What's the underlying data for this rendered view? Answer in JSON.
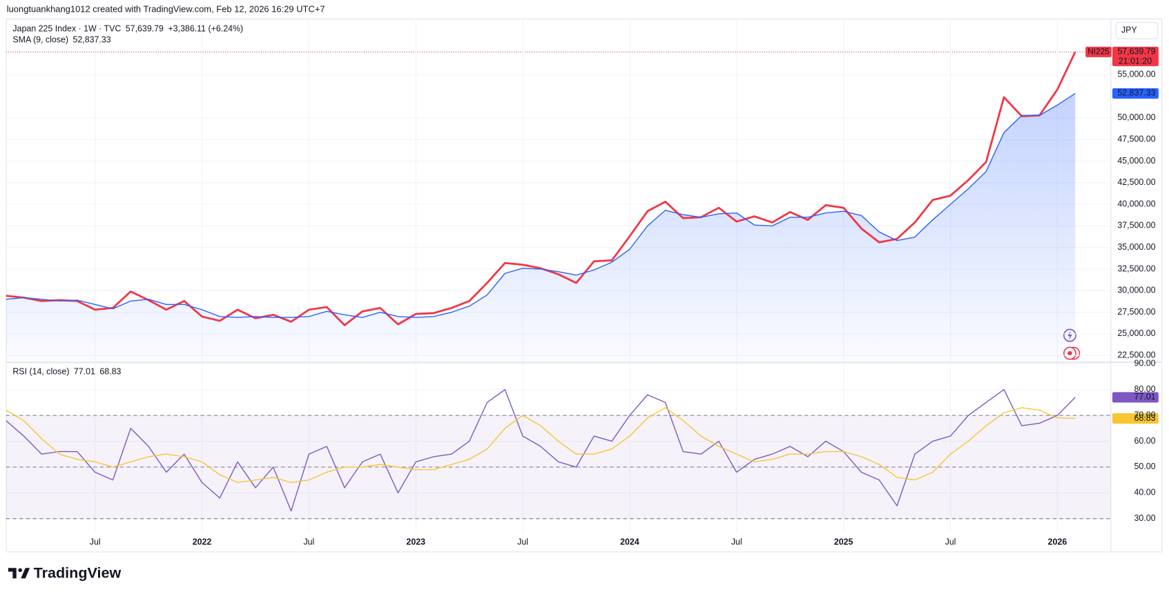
{
  "header": "luongtuankhang1012 created with TradingView.com, Feb 12, 2026 16:29 UTC+7",
  "currency": "JPY",
  "footer": "TradingView",
  "chart_data": [
    {
      "type": "line",
      "symbol": "NI225",
      "countdown": "21:01:20",
      "change": "+3,386.11 (+6.24%)",
      "x": [
        "2021-02",
        "2021-03",
        "2021-04",
        "2021-05",
        "2021-06",
        "2021-07",
        "2021-08",
        "2021-09",
        "2021-10",
        "2021-11",
        "2021-12",
        "2022-01",
        "2022-02",
        "2022-03",
        "2022-04",
        "2022-05",
        "2022-06",
        "2022-07",
        "2022-08",
        "2022-09",
        "2022-10",
        "2022-11",
        "2022-12",
        "2023-01",
        "2023-02",
        "2023-03",
        "2023-04",
        "2023-05",
        "2023-06",
        "2023-07",
        "2023-08",
        "2023-09",
        "2023-10",
        "2023-11",
        "2023-12",
        "2024-01",
        "2024-02",
        "2024-03",
        "2024-04",
        "2024-05",
        "2024-06",
        "2024-07",
        "2024-08",
        "2024-09",
        "2024-10",
        "2024-11",
        "2024-12",
        "2025-01",
        "2025-02",
        "2025-03",
        "2025-04",
        "2025-05",
        "2025-06",
        "2025-07",
        "2025-08",
        "2025-09",
        "2025-10",
        "2025-11",
        "2025-12",
        "2026-01",
        "2026-02"
      ],
      "xlim": [
        "2021-02",
        "2026-04"
      ],
      "series": [
        {
          "name": "Japan 225 Index · 1W · TVC",
          "color": "#f23645",
          "last_value_label": "57,639.79",
          "values": [
            29400,
            29200,
            28800,
            28900,
            28800,
            27800,
            28000,
            29900,
            28900,
            27800,
            28800,
            27000,
            26500,
            27800,
            26800,
            27200,
            26400,
            27800,
            28100,
            26000,
            27600,
            28000,
            26100,
            27300,
            27400,
            28000,
            28800,
            30900,
            33200,
            33000,
            32600,
            31900,
            30900,
            33400,
            33500,
            36300,
            39200,
            40300,
            38400,
            38500,
            39600,
            38000,
            38600,
            37900,
            39100,
            38200,
            39900,
            39600,
            37200,
            35600,
            36000,
            37900,
            40500,
            41000,
            42800,
            44900,
            52400,
            50200,
            50300,
            53300,
            57639.79
          ]
        },
        {
          "name": "SMA (9, close)",
          "color": "#2962ff",
          "fill": true,
          "last_value_label": "52,837.33",
          "values": [
            29000,
            29200,
            29000,
            28800,
            28900,
            28400,
            27900,
            28800,
            29000,
            28400,
            28400,
            27800,
            27000,
            26900,
            27000,
            26900,
            26900,
            27000,
            27600,
            27200,
            26900,
            27500,
            27000,
            26900,
            27000,
            27500,
            28200,
            29500,
            32000,
            32600,
            32500,
            32200,
            31800,
            32400,
            33300,
            34800,
            37500,
            39300,
            38800,
            38500,
            38900,
            39000,
            37600,
            37500,
            38500,
            38500,
            39000,
            39200,
            38700,
            36800,
            35800,
            36200,
            38200,
            40000,
            41800,
            43800,
            48300,
            50300,
            50300,
            51500,
            52837.33
          ]
        }
      ],
      "ylim": [
        21800,
        61500
      ],
      "yticks": [
        {
          "value": 22500,
          "label": "22,500.00"
        },
        {
          "value": 25000,
          "label": "25,000.00"
        },
        {
          "value": 27500,
          "label": "27,500.00"
        },
        {
          "value": 30000,
          "label": "30,000.00"
        },
        {
          "value": 32500,
          "label": "32,500.00"
        },
        {
          "value": 35000,
          "label": "35,000.00"
        },
        {
          "value": 37500,
          "label": "37,500.00"
        },
        {
          "value": 40000,
          "label": "40,000.00"
        },
        {
          "value": 42500,
          "label": "42,500.00"
        },
        {
          "value": 45000,
          "label": "45,000.00"
        },
        {
          "value": 47500,
          "label": "47,500.00"
        },
        {
          "value": 50000,
          "label": "50,000.00"
        },
        {
          "value": 55000,
          "label": "55,000.00"
        }
      ],
      "grid": true
    },
    {
      "type": "line",
      "x": [
        "2021-02",
        "2021-03",
        "2021-04",
        "2021-05",
        "2021-06",
        "2021-07",
        "2021-08",
        "2021-09",
        "2021-10",
        "2021-11",
        "2021-12",
        "2022-01",
        "2022-02",
        "2022-03",
        "2022-04",
        "2022-05",
        "2022-06",
        "2022-07",
        "2022-08",
        "2022-09",
        "2022-10",
        "2022-11",
        "2022-12",
        "2023-01",
        "2023-02",
        "2023-03",
        "2023-04",
        "2023-05",
        "2023-06",
        "2023-07",
        "2023-08",
        "2023-09",
        "2023-10",
        "2023-11",
        "2023-12",
        "2024-01",
        "2024-02",
        "2024-03",
        "2024-04",
        "2024-05",
        "2024-06",
        "2024-07",
        "2024-08",
        "2024-09",
        "2024-10",
        "2024-11",
        "2024-12",
        "2025-01",
        "2025-02",
        "2025-03",
        "2025-04",
        "2025-05",
        "2025-06",
        "2025-07",
        "2025-08",
        "2025-09",
        "2025-10",
        "2025-11",
        "2025-12",
        "2026-01",
        "2026-02"
      ],
      "xlim": [
        "2021-02",
        "2026-04"
      ],
      "xticks": [
        {
          "value": "2021-07",
          "label": "Jul"
        },
        {
          "value": "2022-01",
          "label": "2022"
        },
        {
          "value": "2022-07",
          "label": "Jul"
        },
        {
          "value": "2023-01",
          "label": "2023"
        },
        {
          "value": "2023-07",
          "label": "Jul"
        },
        {
          "value": "2024-01",
          "label": "2024"
        },
        {
          "value": "2024-07",
          "label": "Jul"
        },
        {
          "value": "2025-01",
          "label": "2025"
        },
        {
          "value": "2025-07",
          "label": "Jul"
        },
        {
          "value": "2026-01",
          "label": "2026"
        }
      ],
      "series": [
        {
          "name": "RSI (14, close)",
          "color": "#7e57c2",
          "values": [
            68,
            62,
            55,
            56,
            56,
            48,
            45,
            65,
            58,
            48,
            55,
            44,
            38,
            52,
            42,
            50,
            33,
            55,
            58,
            42,
            52,
            55,
            40,
            52,
            54,
            55,
            60,
            75,
            80,
            62,
            58,
            52,
            50,
            62,
            60,
            70,
            78,
            75,
            56,
            55,
            60,
            48,
            53,
            55,
            58,
            54,
            60,
            56,
            48,
            45,
            35,
            55,
            60,
            62,
            70,
            75,
            80,
            66,
            67,
            70,
            77.01
          ]
        },
        {
          "color": "#f7c631",
          "values": [
            72,
            68,
            61,
            55,
            53,
            52,
            50,
            52,
            54,
            55,
            54,
            52,
            47,
            44,
            45,
            46,
            44,
            45,
            48,
            50,
            50,
            51,
            50,
            49,
            49,
            51,
            53,
            57,
            65,
            70,
            66,
            60,
            55,
            55,
            57,
            62,
            69,
            73,
            68,
            62,
            58,
            55,
            52,
            53,
            55,
            55,
            56,
            56,
            54,
            51,
            46,
            45,
            48,
            55,
            60,
            66,
            71,
            73,
            72,
            69,
            68.83
          ]
        }
      ],
      "levels": [
        30,
        50,
        70
      ],
      "ylim": [
        24.5,
        90.6
      ],
      "yticks": [
        {
          "value": 30,
          "label": "30.00"
        },
        {
          "value": 40,
          "label": "40.00"
        },
        {
          "value": 50,
          "label": "50.00"
        },
        {
          "value": 60,
          "label": "60.00"
        },
        {
          "value": 70,
          "label": "70.00"
        },
        {
          "value": 80,
          "label": "80.00"
        },
        {
          "value": 90,
          "label": "90.00"
        }
      ],
      "grid": true
    }
  ]
}
